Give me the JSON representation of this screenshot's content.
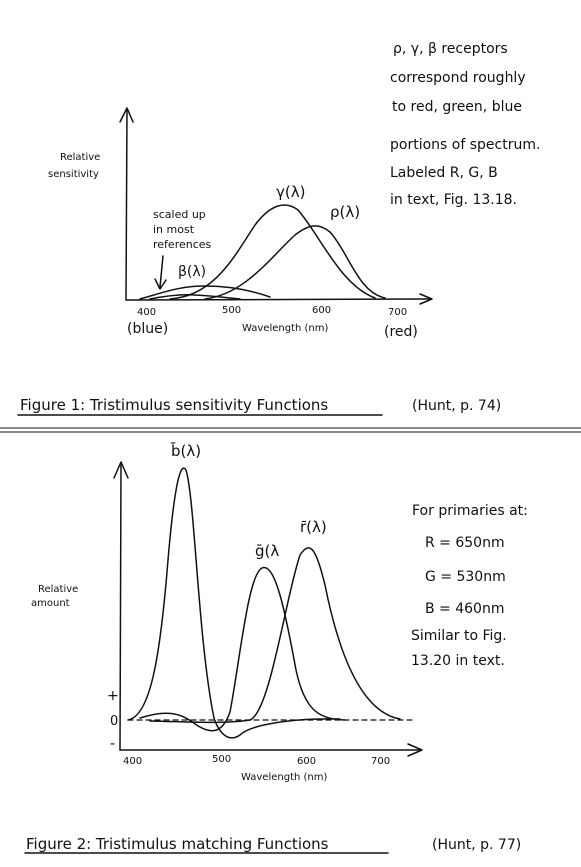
{
  "figure1": {
    "ylabel_line1": "Relative",
    "ylabel_line2": "sensitivity",
    "xlabel": "Wavelength (nm)",
    "x_ticks": [
      "400",
      "500",
      "600",
      "700"
    ],
    "blue_label": "(blue)",
    "red_label": "(red)",
    "curve_labels": {
      "beta": "β(λ)",
      "gamma": "γ(λ)",
      "rho": "ρ(λ)"
    },
    "annotation_lines": [
      "scaled up",
      "in most",
      "references"
    ],
    "note_lines": [
      "ρ, γ, β receptors",
      "correspond roughly",
      "to red, green, blue",
      "portions of spectrum.",
      "Labeled R, G, B",
      "in text, Fig. 13.18."
    ],
    "caption": "Figure 1: Tristimulus sensitivity Functions",
    "source": "(Hunt, p. 74)"
  },
  "figure2": {
    "ylabel_line1": "Relative",
    "ylabel_line2": "amount",
    "xlabel": "Wavelength (nm)",
    "x_ticks": [
      "400",
      "500",
      "600",
      "700"
    ],
    "y_marks": [
      "+",
      "0",
      "-"
    ],
    "curve_labels": {
      "b": "b̄(λ)",
      "g": "ḡ(λ",
      "r": "r̄(λ)"
    },
    "note_lines": [
      "For primaries at:",
      "R = 650nm",
      "G = 530nm",
      "B = 460nm",
      "Similar to Fig.",
      "13.20 in text."
    ],
    "caption": "Figure 2: Tristimulus matching Functions",
    "source": "(Hunt, p. 77)"
  }
}
